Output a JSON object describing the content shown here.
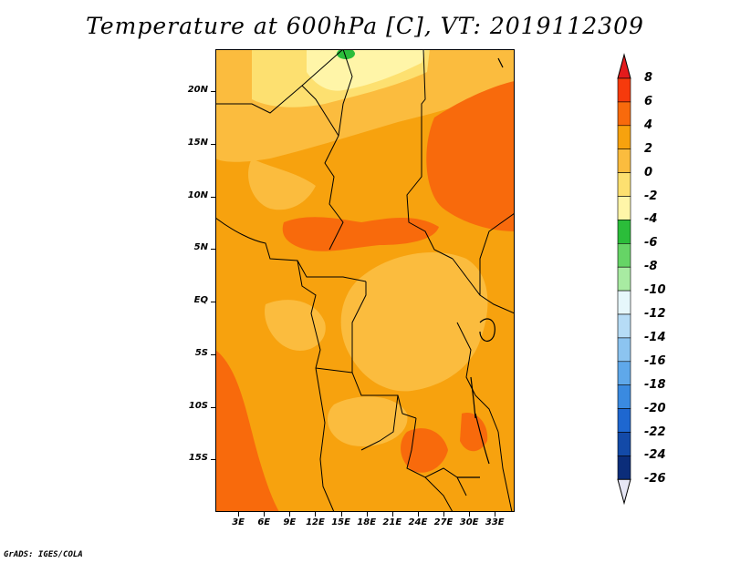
{
  "title": "Temperature at 600hPa [C], VT: 2019112309",
  "footer": "GrADS: IGES/COLA",
  "map": {
    "lat_range": [
      -20,
      24
    ],
    "lon_range": [
      0,
      35
    ],
    "lat_labels": [
      "20N",
      "15N",
      "10N",
      "5N",
      "EQ",
      "5S",
      "10S",
      "15S"
    ],
    "lon_labels": [
      "3E",
      "6E",
      "9E",
      "12E",
      "15E",
      "18E",
      "21E",
      "24E",
      "27E",
      "30E",
      "33E"
    ]
  },
  "colorbar": {
    "labels": [
      "8",
      "6",
      "4",
      "2",
      "0",
      "-2",
      "-4",
      "-6",
      "-8",
      "-10",
      "-12",
      "-14",
      "-16",
      "-18",
      "-20",
      "-22",
      "-24",
      "-26"
    ],
    "colors": [
      "#e31a1c",
      "#f63a0c",
      "#f86a0c",
      "#f7a20e",
      "#fbbc3e",
      "#fde070",
      "#fff5a8",
      "#2bbd3a",
      "#66d466",
      "#a8eba2",
      "#e6f7fb",
      "#b6dcf6",
      "#8cc4f0",
      "#5fa8ea",
      "#3a8ae0",
      "#1e67d0",
      "#134aa8",
      "#0b2d7a",
      "#061a5a"
    ]
  }
}
